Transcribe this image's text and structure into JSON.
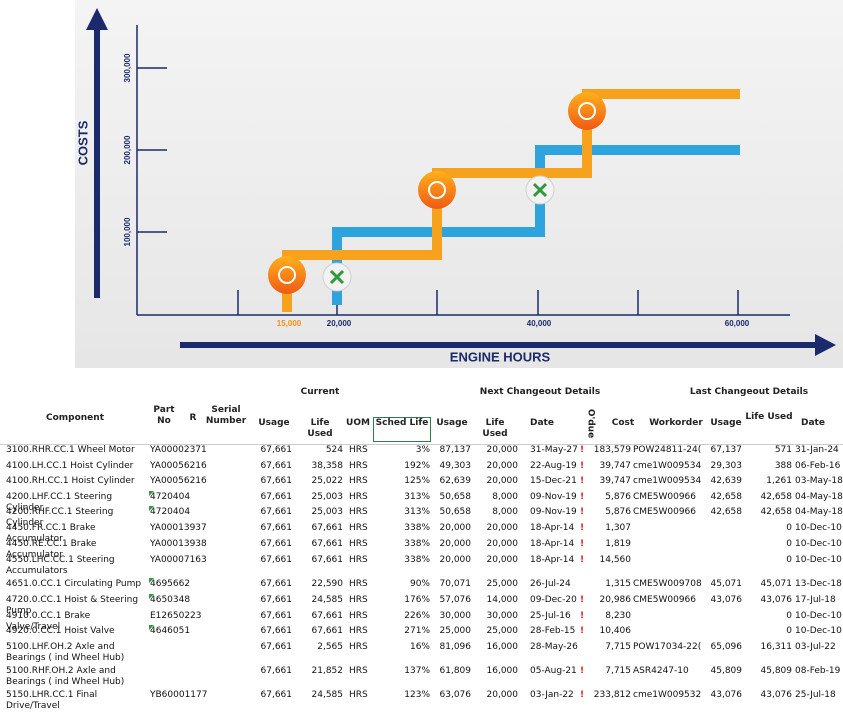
{
  "infographic": {
    "y_axis_title": "COSTS",
    "x_axis_title": "ENGINE HOURS",
    "y_labels": [
      "300,000",
      "200,000",
      "100,000"
    ],
    "x_labels": [
      "15,000",
      "20,000",
      "40,000",
      "60,000"
    ]
  },
  "table": {
    "group_headers": [
      "Current",
      "Next Changeout Details",
      "Last Changeout Details"
    ],
    "columns": [
      "Component",
      "Part No",
      "R",
      "Serial Number",
      "Usage",
      "Life Used",
      "UOM",
      "Sched Life",
      "Usage",
      "Life Used",
      "Date",
      "O'due",
      "Cost",
      "Workorder",
      "Usage",
      "Life Used",
      "Date"
    ],
    "rows": [
      {
        "component": "3100.RHR.CC.1 Wheel Motor",
        "part_no": "YA00002371",
        "usage": "67,661",
        "life_used": "524",
        "uom": "HRS",
        "sched_life": "3%",
        "next_usage": "87,137",
        "next_life": "20,000",
        "next_date": "31-May-27",
        "odue": "!",
        "cost": "183,579",
        "workorder": "POW24811-24(",
        "last_usage": "67,137",
        "last_life": "571",
        "last_date": "31-Jan-24"
      },
      {
        "component": "4100.LH.CC.1 Hoist Cylinder",
        "part_no": "YA00056216",
        "usage": "67,661",
        "life_used": "38,358",
        "uom": "HRS",
        "sched_life": "192%",
        "next_usage": "49,303",
        "next_life": "20,000",
        "next_date": "22-Aug-19",
        "odue": "!",
        "cost": "39,747",
        "workorder": "cme1W009534",
        "last_usage": "29,303",
        "last_life": "388",
        "last_date": "06-Feb-16"
      },
      {
        "component": "4100.RH.CC.1 Hoist Cylinder",
        "part_no": "YA00056216",
        "usage": "67,661",
        "life_used": "25,022",
        "uom": "HRS",
        "sched_life": "125%",
        "next_usage": "62,639",
        "next_life": "20,000",
        "next_date": "15-Dec-21",
        "odue": "!",
        "cost": "39,747",
        "workorder": "cme1W009534",
        "last_usage": "42,639",
        "last_life": "1,261",
        "last_date": "03-May-18"
      },
      {
        "component": "4200.LHF.CC.1 Steering Cylinder",
        "part_no": "4720404",
        "flagged": true,
        "usage": "67,661",
        "life_used": "25,003",
        "uom": "HRS",
        "sched_life": "313%",
        "next_usage": "50,658",
        "next_life": "8,000",
        "next_date": "09-Nov-19",
        "odue": "!",
        "cost": "5,876",
        "workorder": "CME5W00966",
        "last_usage": "42,658",
        "last_life": "42,658",
        "last_date": "04-May-18"
      },
      {
        "component": "4200.RHF.CC.1 Steering Cylinder",
        "part_no": "4720404",
        "flagged": true,
        "usage": "67,661",
        "life_used": "25,003",
        "uom": "HRS",
        "sched_life": "313%",
        "next_usage": "50,658",
        "next_life": "8,000",
        "next_date": "09-Nov-19",
        "odue": "!",
        "cost": "5,876",
        "workorder": "CME5W00966",
        "last_usage": "42,658",
        "last_life": "42,658",
        "last_date": "04-May-18"
      },
      {
        "component": "4450.FR.CC.1 Brake Accumulator",
        "part_no": "YA00013937",
        "usage": "67,661",
        "life_used": "67,661",
        "uom": "HRS",
        "sched_life": "338%",
        "next_usage": "20,000",
        "next_life": "20,000",
        "next_date": "18-Apr-14",
        "odue": "!",
        "cost": "1,307",
        "last_life": "0",
        "last_date": "10-Dec-10"
      },
      {
        "component": "4450.RE.CC.1 Brake Accumulator",
        "part_no": "YA00013938",
        "usage": "67,661",
        "life_used": "67,661",
        "uom": "HRS",
        "sched_life": "338%",
        "next_usage": "20,000",
        "next_life": "20,000",
        "next_date": "18-Apr-14",
        "odue": "!",
        "cost": "1,819",
        "last_life": "0",
        "last_date": "10-Dec-10"
      },
      {
        "component": "4550.LHC.CC.1 Steering Accumulators",
        "part_no": "YA00007163",
        "usage": "67,661",
        "life_used": "67,661",
        "uom": "HRS",
        "sched_life": "338%",
        "next_usage": "20,000",
        "next_life": "20,000",
        "next_date": "18-Apr-14",
        "odue": "!",
        "cost": "14,560",
        "last_life": "0",
        "last_date": "10-Dec-10"
      },
      {
        "component": "4651.0.CC.1 Circulating Pump",
        "part_no": "4695662",
        "flagged": true,
        "usage": "67,661",
        "life_used": "22,590",
        "uom": "HRS",
        "sched_life": "90%",
        "next_usage": "70,071",
        "next_life": "25,000",
        "next_date": "26-Jul-24",
        "cost": "1,315",
        "workorder": "CME5W009708",
        "last_usage": "45,071",
        "last_life": "45,071",
        "last_date": "13-Dec-18"
      },
      {
        "component": "4720.0.CC.1 Hoist & Steering Pump",
        "part_no": "4650348",
        "flagged": true,
        "usage": "67,661",
        "life_used": "24,585",
        "uom": "HRS",
        "sched_life": "176%",
        "next_usage": "57,076",
        "next_life": "14,000",
        "next_date": "09-Dec-20",
        "odue": "!",
        "cost": "20,986",
        "workorder": "CME5W00966",
        "last_usage": "43,076",
        "last_life": "43,076",
        "last_date": "17-Jul-18"
      },
      {
        "component": "4910.0.CC.1 Brake Valve/Travel",
        "part_no": "E12650223",
        "usage": "67,661",
        "life_used": "67,661",
        "uom": "HRS",
        "sched_life": "226%",
        "next_usage": "30,000",
        "next_life": "30,000",
        "next_date": "25-Jul-16",
        "odue": "!",
        "cost": "8,230",
        "last_life": "0",
        "last_date": "10-Dec-10"
      },
      {
        "component": "4920.0.CC.1 Hoist Valve",
        "part_no": "4646051",
        "flagged": true,
        "usage": "67,661",
        "life_used": "67,661",
        "uom": "HRS",
        "sched_life": "271%",
        "next_usage": "25,000",
        "next_life": "25,000",
        "next_date": "28-Feb-15",
        "odue": "!",
        "cost": "10,406",
        "last_life": "0",
        "last_date": "10-Dec-10"
      },
      {
        "component": "5100.LHF.OH.2 Axle and Bearings ( ind Wheel Hub)",
        "usage": "67,661",
        "life_used": "2,565",
        "uom": "HRS",
        "sched_life": "16%",
        "next_usage": "81,096",
        "next_life": "16,000",
        "next_date": "28-May-26",
        "cost": "7,715",
        "workorder": "POW17034-22(",
        "last_usage": "65,096",
        "last_life": "16,311",
        "last_date": "03-Jul-22"
      },
      {
        "component": "5100.RHF.OH.2 Axle and Bearings ( ind Wheel Hub)",
        "usage": "67,661",
        "life_used": "21,852",
        "uom": "HRS",
        "sched_life": "137%",
        "next_usage": "61,809",
        "next_life": "16,000",
        "next_date": "05-Aug-21",
        "odue": "!",
        "cost": "7,715",
        "workorder": "ASR4247-10",
        "last_usage": "45,809",
        "last_life": "45,809",
        "last_date": "08-Feb-19"
      },
      {
        "component": "5150.LHR.CC.1 Final Drive/Travel",
        "part_no": "YB60001177",
        "usage": "67,661",
        "life_used": "24,585",
        "uom": "HRS",
        "sched_life": "123%",
        "next_usage": "63,076",
        "next_life": "20,000",
        "next_date": "03-Jan-22",
        "odue": "!",
        "cost": "233,812",
        "workorder": "cme1W009532",
        "last_usage": "43,076",
        "last_life": "43,076",
        "last_date": "25-Jul-18"
      }
    ]
  }
}
